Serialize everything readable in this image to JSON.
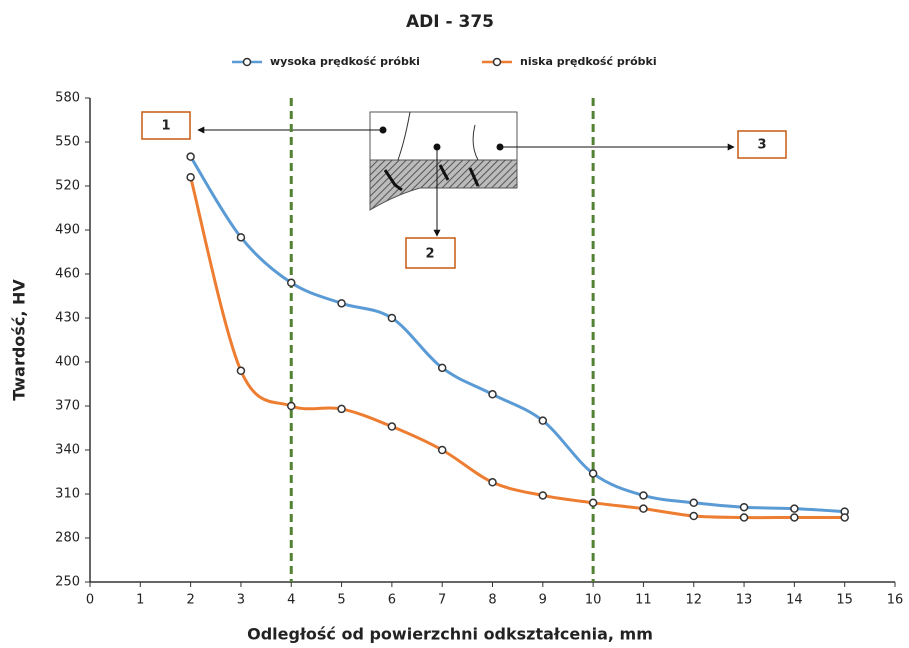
{
  "chart_data": {
    "type": "line",
    "title": "ADI - 375",
    "x_label": "Odległość od powierzchni odkształcenia, mm",
    "y_label": "Twardość, HV",
    "x": [
      2,
      3,
      4,
      5,
      6,
      7,
      8,
      9,
      10,
      11,
      12,
      13,
      14,
      15
    ],
    "series": [
      {
        "name": "wysoka prędkość próbki",
        "color": "#5b9bd5",
        "values": [
          540,
          485,
          454,
          440,
          430,
          396,
          378,
          360,
          324,
          309,
          304,
          301,
          300,
          298
        ]
      },
      {
        "name": "niska prędkość próbki",
        "color": "#ed7d31",
        "values": [
          526,
          394,
          370,
          368,
          356,
          340,
          318,
          309,
          304,
          300,
          295,
          294,
          294,
          294
        ]
      }
    ],
    "xlim": [
      0,
      16
    ],
    "xticks": [
      0,
      1,
      2,
      3,
      4,
      5,
      6,
      7,
      8,
      9,
      10,
      11,
      12,
      13,
      14,
      15,
      16
    ],
    "ylim": [
      250,
      580
    ],
    "yticks": [
      250,
      280,
      310,
      340,
      370,
      400,
      430,
      460,
      490,
      520,
      550,
      580
    ],
    "grid": false,
    "legend": "top",
    "vlines": [
      4,
      10
    ],
    "vline_color": "#548235",
    "annotations": [
      "1",
      "2",
      "3"
    ]
  }
}
